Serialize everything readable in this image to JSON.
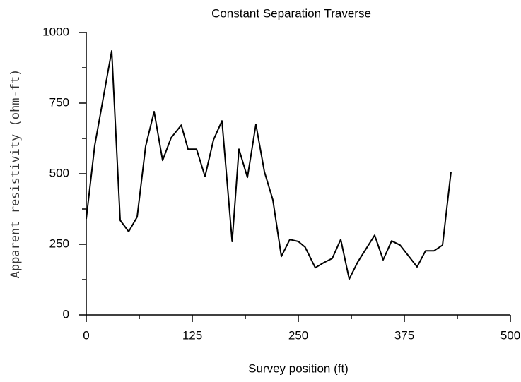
{
  "chart_data": {
    "type": "line",
    "title": "Constant Separation Traverse",
    "x_label": "Survey position (ft)",
    "y_label": "Apparent resistivity (ohm-ft)",
    "x": [
      0,
      10,
      30,
      40,
      50,
      60,
      70,
      80,
      90,
      100,
      112,
      120,
      130,
      140,
      150,
      160,
      172,
      180,
      190,
      200,
      210,
      220,
      230,
      240,
      250,
      258,
      270,
      280,
      290,
      300,
      310,
      320,
      340,
      350,
      360,
      370,
      390,
      400,
      410,
      420,
      430
    ],
    "series": [
      {
        "color": "#000000",
        "values": [
          340,
          600,
          935,
          335,
          295,
          347,
          597,
          720,
          547,
          627,
          672,
          587,
          587,
          490,
          620,
          687,
          260,
          587,
          487,
          675,
          507,
          407,
          207,
          267,
          260,
          240,
          167,
          185,
          200,
          267,
          127,
          187,
          282,
          195,
          262,
          247,
          170,
          227,
          227,
          247,
          507
        ]
      }
    ],
    "xlim": [
      0,
      500
    ],
    "xticks": [
      0,
      125,
      250,
      375,
      500
    ],
    "xminorticks": [
      62.5,
      187.5,
      312.5,
      437.5
    ],
    "ylim": [
      0,
      1000
    ],
    "yticks": [
      0,
      250,
      500,
      750,
      1000
    ],
    "yminorticks": [
      125,
      375,
      625,
      875
    ],
    "grid": false
  }
}
